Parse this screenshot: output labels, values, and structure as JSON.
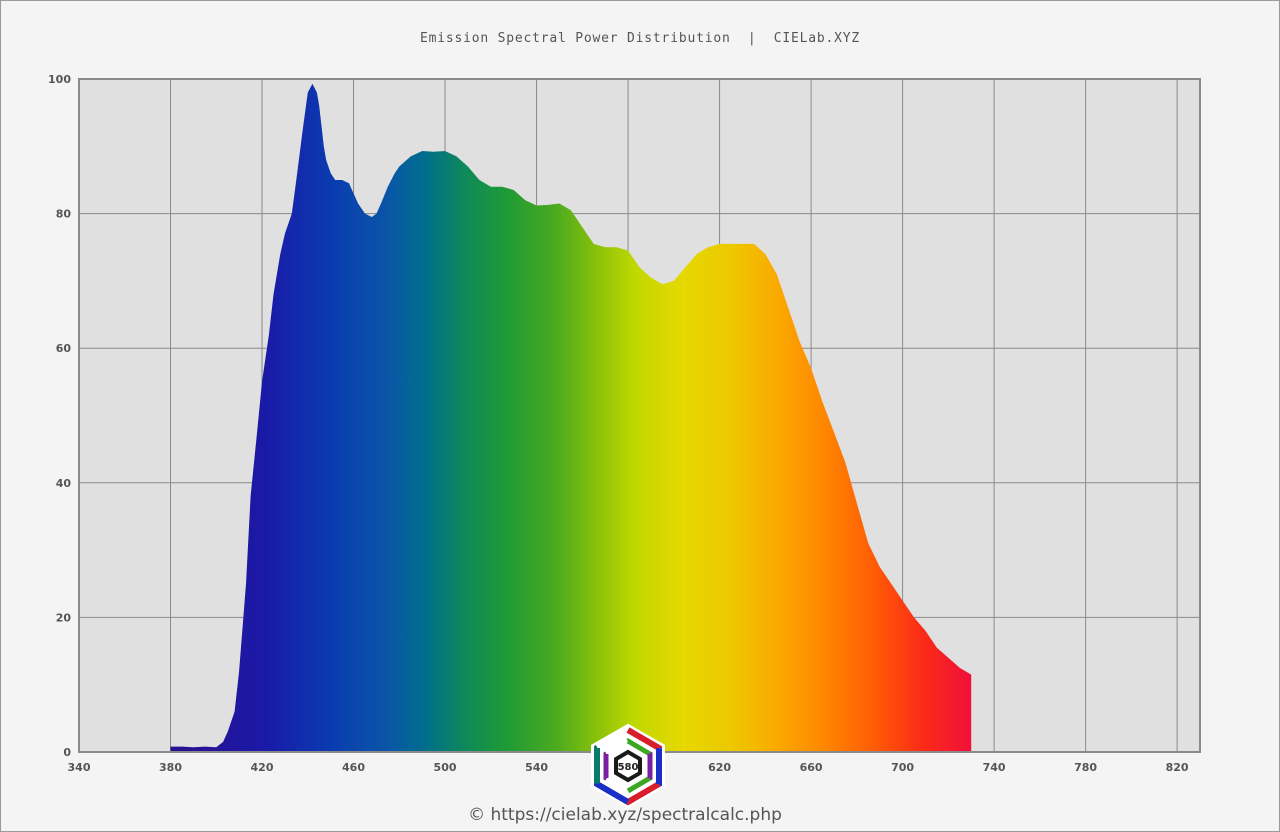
{
  "chart_data": {
    "type": "area",
    "title": "Emission Spectral Power Distribution  |  CIELab.XYZ",
    "xlabel": "",
    "ylabel": "",
    "xlim": [
      340,
      830
    ],
    "ylim": [
      0,
      100
    ],
    "x_ticks": [
      "340",
      "380",
      "420",
      "460",
      "500",
      "540",
      "580",
      "620",
      "660",
      "700",
      "740",
      "780",
      "820"
    ],
    "y_ticks": [
      "0",
      "20",
      "40",
      "60",
      "80",
      "100"
    ],
    "grid": true,
    "legend": "none",
    "series": [
      {
        "x": [
          380,
          385,
          390,
          395,
          400,
          403,
          405,
          408,
          410,
          413,
          415,
          418,
          420,
          423,
          425,
          428,
          430,
          433,
          435,
          438,
          440,
          442,
          444,
          445,
          446,
          447,
          448,
          450,
          452,
          455,
          458,
          460,
          462,
          465,
          468,
          470,
          472,
          475,
          478,
          480,
          485,
          490,
          495,
          500,
          505,
          510,
          515,
          520,
          525,
          530,
          535,
          540,
          545,
          550,
          555,
          560,
          565,
          570,
          575,
          580,
          585,
          590,
          595,
          600,
          605,
          610,
          615,
          620,
          625,
          630,
          635,
          640,
          645,
          650,
          655,
          660,
          665,
          670,
          675,
          680,
          685,
          690,
          695,
          700,
          705,
          710,
          715,
          720,
          725,
          730
        ],
        "y": [
          0.8,
          0.8,
          0.7,
          0.8,
          0.7,
          1.5,
          3,
          6,
          12,
          25,
          38,
          48,
          55,
          62,
          68,
          74,
          77,
          80,
          85,
          93,
          98,
          99.3,
          98,
          96,
          93,
          90,
          88,
          86,
          85,
          85,
          84.5,
          83,
          81.5,
          80,
          79.5,
          80,
          81.5,
          84,
          86,
          87,
          88.5,
          89.3,
          89.2,
          89.3,
          88.5,
          87,
          85,
          84,
          84,
          83.5,
          82,
          81.2,
          81.3,
          81.5,
          80.5,
          78,
          75.5,
          75,
          75,
          74.5,
          72,
          70.5,
          69.5,
          70,
          72,
          74,
          75,
          75.5,
          75.5,
          75.5,
          75.5,
          74,
          71,
          66,
          61,
          57,
          52,
          47.5,
          43,
          37,
          31,
          27.5,
          25,
          22.5,
          20,
          18,
          15.5,
          14,
          12.5,
          11.5
        ]
      }
    ],
    "x_marker": "580",
    "footer": "© https://cielab.xyz/spectralcalc.php"
  }
}
